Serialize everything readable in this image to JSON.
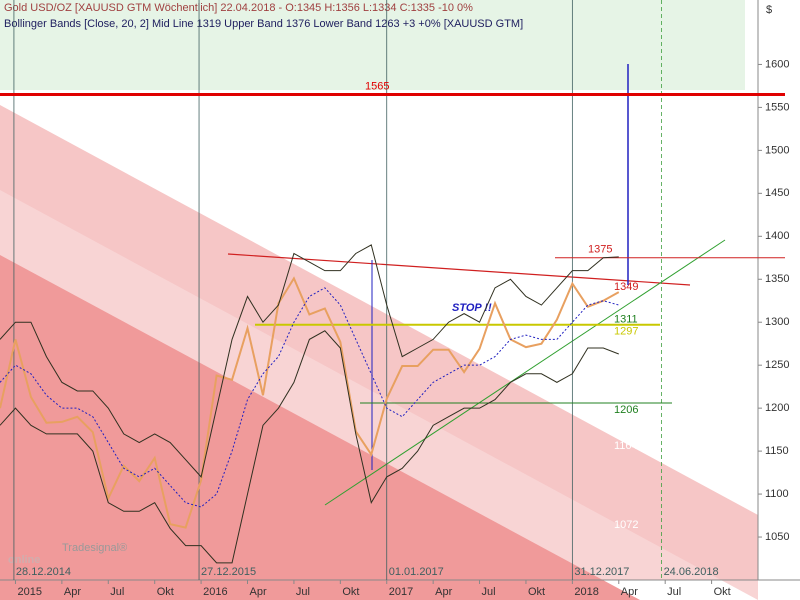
{
  "chart_data": {
    "type": "line",
    "header": {
      "line1": "Gold USD/OZ [XAUUSD GTM  Wöchentlich] 22.04.2018 - O:1345 H:1356 L:1334 C:1335 -10 0%",
      "line2": "Bollinger Bands [Close, 20, 2] Mid Line 1319 Upper Band 1376 Lower Band 1263 +3 +0% [XAUUSD GTM]"
    },
    "currency": "$",
    "logo": "online",
    "logo_small": "Tradesignal®",
    "annotation": "STOP !!",
    "x": [
      "2014-12",
      "2015-01",
      "2015-02",
      "2015-03",
      "2015-04",
      "2015-05",
      "2015-06",
      "2015-07",
      "2015-08",
      "2015-09",
      "2015-10",
      "2015-11",
      "2015-12",
      "2016-01",
      "2016-02",
      "2016-03",
      "2016-04",
      "2016-05",
      "2016-06",
      "2016-07",
      "2016-08",
      "2016-09",
      "2016-10",
      "2016-11",
      "2016-12",
      "2017-01",
      "2017-02",
      "2017-03",
      "2017-04",
      "2017-05",
      "2017-06",
      "2017-07",
      "2017-08",
      "2017-09",
      "2017-10",
      "2017-11",
      "2017-12",
      "2018-01",
      "2018-02",
      "2018-03",
      "2018-04"
    ],
    "series": [
      {
        "name": "Close",
        "color": "#e8a060",
        "values": [
          1200,
          1280,
          1213,
          1183,
          1184,
          1190,
          1172,
          1095,
          1133,
          1115,
          1142,
          1065,
          1061,
          1116,
          1238,
          1233,
          1293,
          1215,
          1322,
          1351,
          1309,
          1316,
          1277,
          1173,
          1146,
          1211,
          1249,
          1249,
          1268,
          1268,
          1242,
          1269,
          1322,
          1280,
          1271,
          1275,
          1303,
          1345,
          1318,
          1325,
          1335
        ]
      },
      {
        "name": "Mid Line",
        "color": "#2020c0",
        "dash": true,
        "values": [
          1230,
          1250,
          1240,
          1215,
          1200,
          1200,
          1190,
          1160,
          1130,
          1120,
          1130,
          1110,
          1090,
          1085,
          1100,
          1150,
          1210,
          1240,
          1260,
          1300,
          1330,
          1340,
          1320,
          1280,
          1240,
          1200,
          1190,
          1210,
          1230,
          1240,
          1250,
          1250,
          1260,
          1280,
          1285,
          1280,
          1280,
          1300,
          1320,
          1325,
          1320
        ]
      },
      {
        "name": "Upper Band",
        "color": "#303020",
        "values": [
          1280,
          1300,
          1300,
          1260,
          1230,
          1220,
          1220,
          1200,
          1170,
          1160,
          1170,
          1160,
          1140,
          1120,
          1200,
          1280,
          1330,
          1300,
          1320,
          1380,
          1370,
          1360,
          1360,
          1380,
          1390,
          1320,
          1260,
          1270,
          1280,
          1300,
          1310,
          1300,
          1340,
          1350,
          1330,
          1320,
          1340,
          1360,
          1360,
          1375,
          1376
        ]
      },
      {
        "name": "Lower Band",
        "color": "#303020",
        "values": [
          1180,
          1200,
          1180,
          1170,
          1170,
          1170,
          1150,
          1090,
          1080,
          1080,
          1090,
          1060,
          1040,
          1040,
          1020,
          1020,
          1100,
          1180,
          1200,
          1230,
          1280,
          1290,
          1270,
          1170,
          1090,
          1120,
          1130,
          1150,
          1180,
          1190,
          1200,
          1200,
          1210,
          1230,
          1240,
          1240,
          1230,
          1240,
          1270,
          1270,
          1263
        ]
      }
    ],
    "xlim": [
      "2014-12",
      "2019-01"
    ],
    "xticks": [
      {
        "value": "2015-01",
        "label": "2015"
      },
      {
        "value": "2015-04",
        "label": "Apr"
      },
      {
        "value": "2015-07",
        "label": "Jul"
      },
      {
        "value": "2015-10",
        "label": "Okt"
      },
      {
        "value": "2016-01",
        "label": "2016"
      },
      {
        "value": "2016-04",
        "label": "Apr"
      },
      {
        "value": "2016-07",
        "label": "Jul"
      },
      {
        "value": "2016-10",
        "label": "Okt"
      },
      {
        "value": "2017-01",
        "label": "2017"
      },
      {
        "value": "2017-04",
        "label": "Apr"
      },
      {
        "value": "2017-07",
        "label": "Jul"
      },
      {
        "value": "2017-10",
        "label": "Okt"
      },
      {
        "value": "2018-01",
        "label": "2018"
      },
      {
        "value": "2018-04",
        "label": "Apr"
      },
      {
        "value": "2018-07",
        "label": "Jul"
      },
      {
        "value": "2018-10",
        "label": "Okt"
      }
    ],
    "ylim": [
      1000,
      1675
    ],
    "yticks": [
      1050,
      1100,
      1150,
      1200,
      1250,
      1300,
      1350,
      1400,
      1450,
      1500,
      1550,
      1600
    ],
    "date_markers": [
      "28.12.2014",
      "27.12.2015",
      "01.01.2017",
      "31.12.2017",
      "24.06.2018"
    ],
    "levels": [
      {
        "value": 1565,
        "color": "#e00000"
      },
      {
        "value": 1375,
        "color": "#d02020"
      },
      {
        "value": 1349,
        "color": "#d02020"
      },
      {
        "value": 1311,
        "color": "#208020"
      },
      {
        "value": 1297,
        "color": "#c8c800"
      },
      {
        "value": 1206,
        "color": "#208020"
      },
      {
        "value": 1164,
        "color": "#e0e0e0"
      },
      {
        "value": 1072,
        "color": "#f0e0e0"
      }
    ]
  }
}
